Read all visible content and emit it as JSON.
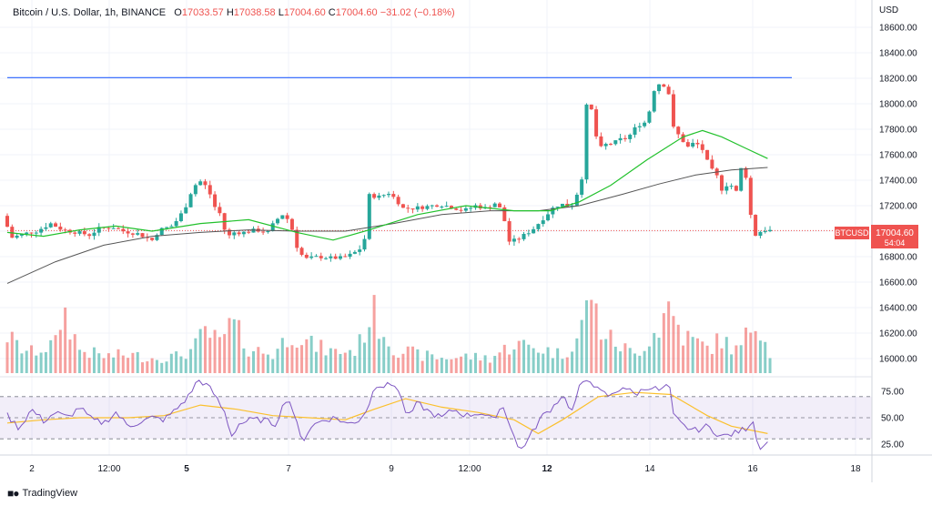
{
  "header": {
    "symbol_title": "Bitcoin / U.S. Dollar, 1h, BINANCE",
    "open_label": "O",
    "open": "17033.57",
    "high_label": "H",
    "high": "17038.58",
    "low_label": "L",
    "low": "17004.60",
    "close_label": "C",
    "close": "17004.60",
    "change": "−31.02 (−0.18%)"
  },
  "axis_unit": "USD",
  "price_tag": {
    "symbol": "BTCUSD",
    "price": "17004.60",
    "countdown": "54:04"
  },
  "brand": {
    "name": "TradingView"
  },
  "colors": {
    "up": "#26a69a",
    "down": "#ef5350",
    "ma_fast": "#22c12c",
    "ma_slow": "#555555",
    "hline": "#2962ff",
    "rsi": "#7e57c2",
    "rsi_ma": "#fbc02d"
  },
  "chart_data": {
    "type": "candlestick",
    "interval": "1h",
    "price_axis": {
      "ticks": [
        "18600.00",
        "18400.00",
        "18200.00",
        "18000.00",
        "17800.00",
        "17600.00",
        "17400.00",
        "17200.00",
        "17000.00",
        "16800.00",
        "16600.00",
        "16400.00",
        "16200.00",
        "16000.00"
      ],
      "range": [
        15900,
        18650
      ]
    },
    "time_axis": {
      "ticks": [
        "2",
        "12:00",
        "5",
        "7",
        "9",
        "12:00",
        "12",
        "14",
        "16",
        "18"
      ],
      "bold_ticks": [
        "5",
        "12"
      ]
    },
    "horizontal_line": 18205,
    "price_path": [
      [
        0,
        17120
      ],
      [
        8,
        16950
      ],
      [
        18,
        16980
      ],
      [
        28,
        17000
      ],
      [
        40,
        17060
      ],
      [
        50,
        17010
      ],
      [
        62,
        16990
      ],
      [
        72,
        16970
      ],
      [
        80,
        17020
      ],
      [
        92,
        17030
      ],
      [
        100,
        17000
      ],
      [
        112,
        16980
      ],
      [
        124,
        16930
      ],
      [
        130,
        17010
      ],
      [
        140,
        17040
      ],
      [
        146,
        17100
      ],
      [
        152,
        17200
      ],
      [
        158,
        17350
      ],
      [
        164,
        17390
      ],
      [
        170,
        17340
      ],
      [
        176,
        17190
      ],
      [
        180,
        17140
      ],
      [
        186,
        16950
      ],
      [
        192,
        16990
      ],
      [
        200,
        16990
      ],
      [
        210,
        17010
      ],
      [
        220,
        16990
      ],
      [
        226,
        17080
      ],
      [
        232,
        17130
      ],
      [
        238,
        17080
      ],
      [
        244,
        16880
      ],
      [
        250,
        16780
      ],
      [
        262,
        16800
      ],
      [
        272,
        16790
      ],
      [
        282,
        16790
      ],
      [
        290,
        16820
      ],
      [
        296,
        16860
      ],
      [
        302,
        16980
      ],
      [
        304,
        17280
      ],
      [
        312,
        17270
      ],
      [
        320,
        17300
      ],
      [
        326,
        17250
      ],
      [
        332,
        17180
      ],
      [
        340,
        17180
      ],
      [
        350,
        17190
      ],
      [
        362,
        17210
      ],
      [
        372,
        17190
      ],
      [
        382,
        17160
      ],
      [
        392,
        17200
      ],
      [
        400,
        17180
      ],
      [
        408,
        17220
      ],
      [
        414,
        17160
      ],
      [
        420,
        16920
      ],
      [
        426,
        16930
      ],
      [
        434,
        16980
      ],
      [
        440,
        17020
      ],
      [
        446,
        17080
      ],
      [
        452,
        17140
      ],
      [
        458,
        17200
      ],
      [
        464,
        17210
      ],
      [
        470,
        17190
      ],
      [
        474,
        17230
      ],
      [
        480,
        17420
      ],
      [
        484,
        17980
      ],
      [
        488,
        17950
      ],
      [
        494,
        17640
      ],
      [
        500,
        17680
      ],
      [
        506,
        17690
      ],
      [
        512,
        17720
      ],
      [
        518,
        17730
      ],
      [
        526,
        17830
      ],
      [
        534,
        17860
      ],
      [
        540,
        18110
      ],
      [
        546,
        18180
      ],
      [
        552,
        18080
      ],
      [
        556,
        17810
      ],
      [
        562,
        17730
      ],
      [
        568,
        17660
      ],
      [
        574,
        17700
      ],
      [
        580,
        17640
      ],
      [
        586,
        17500
      ],
      [
        592,
        17430
      ],
      [
        596,
        17330
      ],
      [
        602,
        17380
      ],
      [
        608,
        17310
      ],
      [
        612,
        17490
      ],
      [
        618,
        17400
      ],
      [
        621,
        16990
      ],
      [
        624,
        16970
      ],
      [
        630,
        17010
      ],
      [
        635,
        17004.6
      ]
    ],
    "ma_fast": [
      [
        0,
        16990
      ],
      [
        30,
        16960
      ],
      [
        60,
        17010
      ],
      [
        90,
        17040
      ],
      [
        120,
        17000
      ],
      [
        160,
        17060
      ],
      [
        200,
        17090
      ],
      [
        240,
        16990
      ],
      [
        270,
        16930
      ],
      [
        300,
        17010
      ],
      [
        340,
        17130
      ],
      [
        380,
        17200
      ],
      [
        420,
        17160
      ],
      [
        450,
        17160
      ],
      [
        474,
        17230
      ],
      [
        500,
        17360
      ],
      [
        530,
        17560
      ],
      [
        560,
        17740
      ],
      [
        576,
        17790
      ],
      [
        592,
        17740
      ],
      [
        612,
        17650
      ],
      [
        630,
        17570
      ]
    ],
    "ma_slow": [
      [
        0,
        16590
      ],
      [
        40,
        16760
      ],
      [
        80,
        16890
      ],
      [
        120,
        16960
      ],
      [
        160,
        16990
      ],
      [
        200,
        17010
      ],
      [
        240,
        17000
      ],
      [
        280,
        17000
      ],
      [
        320,
        17060
      ],
      [
        360,
        17130
      ],
      [
        400,
        17160
      ],
      [
        440,
        17160
      ],
      [
        474,
        17200
      ],
      [
        510,
        17290
      ],
      [
        540,
        17370
      ],
      [
        570,
        17440
      ],
      [
        600,
        17480
      ],
      [
        630,
        17500
      ]
    ],
    "volume": [
      [
        0,
        0.45
      ],
      [
        10,
        0.3
      ],
      [
        20,
        0.25
      ],
      [
        40,
        0.35
      ],
      [
        46,
        0.78
      ],
      [
        60,
        0.28
      ],
      [
        80,
        0.2
      ],
      [
        100,
        0.22
      ],
      [
        120,
        0.18
      ],
      [
        140,
        0.2
      ],
      [
        154,
        0.28
      ],
      [
        164,
        0.5
      ],
      [
        176,
        0.35
      ],
      [
        186,
        0.6
      ],
      [
        200,
        0.3
      ],
      [
        220,
        0.22
      ],
      [
        236,
        0.5
      ],
      [
        250,
        0.35
      ],
      [
        270,
        0.25
      ],
      [
        290,
        0.28
      ],
      [
        302,
        0.75
      ],
      [
        320,
        0.3
      ],
      [
        340,
        0.22
      ],
      [
        360,
        0.18
      ],
      [
        380,
        0.2
      ],
      [
        400,
        0.18
      ],
      [
        420,
        0.35
      ],
      [
        440,
        0.3
      ],
      [
        460,
        0.22
      ],
      [
        474,
        0.45
      ],
      [
        484,
        1.0
      ],
      [
        490,
        0.55
      ],
      [
        500,
        0.4
      ],
      [
        520,
        0.22
      ],
      [
        540,
        0.55
      ],
      [
        548,
        0.8
      ],
      [
        560,
        0.45
      ],
      [
        580,
        0.3
      ],
      [
        592,
        0.4
      ],
      [
        606,
        0.25
      ],
      [
        618,
        0.6
      ],
      [
        622,
        0.7
      ],
      [
        630,
        0.3
      ],
      [
        635,
        0.15
      ]
    ],
    "rsi": {
      "ticks": [
        "75.00",
        "50.00",
        "25.00"
      ],
      "levels": [
        70,
        30
      ],
      "values": [
        [
          0,
          52
        ],
        [
          10,
          40
        ],
        [
          20,
          58
        ],
        [
          30,
          47
        ],
        [
          40,
          55
        ],
        [
          50,
          50
        ],
        [
          60,
          60
        ],
        [
          70,
          48
        ],
        [
          80,
          45
        ],
        [
          90,
          55
        ],
        [
          100,
          42
        ],
        [
          110,
          46
        ],
        [
          120,
          50
        ],
        [
          130,
          48
        ],
        [
          140,
          58
        ],
        [
          150,
          70
        ],
        [
          158,
          86
        ],
        [
          164,
          82
        ],
        [
          170,
          75
        ],
        [
          180,
          55
        ],
        [
          186,
          33
        ],
        [
          192,
          44
        ],
        [
          202,
          48
        ],
        [
          212,
          48
        ],
        [
          222,
          44
        ],
        [
          232,
          70
        ],
        [
          236,
          60
        ],
        [
          244,
          27
        ],
        [
          252,
          42
        ],
        [
          262,
          48
        ],
        [
          272,
          50
        ],
        [
          282,
          44
        ],
        [
          292,
          48
        ],
        [
          300,
          62
        ],
        [
          304,
          82
        ],
        [
          312,
          80
        ],
        [
          322,
          82
        ],
        [
          332,
          50
        ],
        [
          340,
          64
        ],
        [
          350,
          55
        ],
        [
          360,
          50
        ],
        [
          370,
          58
        ],
        [
          380,
          52
        ],
        [
          392,
          55
        ],
        [
          402,
          48
        ],
        [
          410,
          62
        ],
        [
          418,
          40
        ],
        [
          424,
          18
        ],
        [
          432,
          30
        ],
        [
          442,
          50
        ],
        [
          452,
          60
        ],
        [
          460,
          72
        ],
        [
          468,
          56
        ],
        [
          474,
          78
        ],
        [
          482,
          88
        ],
        [
          490,
          75
        ],
        [
          500,
          70
        ],
        [
          510,
          80
        ],
        [
          520,
          72
        ],
        [
          532,
          80
        ],
        [
          542,
          75
        ],
        [
          548,
          84
        ],
        [
          552,
          52
        ],
        [
          560,
          42
        ],
        [
          570,
          38
        ],
        [
          580,
          42
        ],
        [
          592,
          32
        ],
        [
          602,
          35
        ],
        [
          612,
          40
        ],
        [
          618,
          48
        ],
        [
          622,
          22
        ],
        [
          630,
          26
        ]
      ],
      "ma": [
        [
          0,
          45
        ],
        [
          30,
          48
        ],
        [
          60,
          50
        ],
        [
          100,
          50
        ],
        [
          130,
          52
        ],
        [
          160,
          62
        ],
        [
          190,
          58
        ],
        [
          220,
          52
        ],
        [
          250,
          50
        ],
        [
          280,
          48
        ],
        [
          304,
          58
        ],
        [
          330,
          68
        ],
        [
          360,
          60
        ],
        [
          390,
          55
        ],
        [
          420,
          48
        ],
        [
          440,
          35
        ],
        [
          460,
          48
        ],
        [
          490,
          70
        ],
        [
          520,
          74
        ],
        [
          550,
          72
        ],
        [
          580,
          52
        ],
        [
          600,
          42
        ],
        [
          630,
          35
        ]
      ]
    }
  }
}
